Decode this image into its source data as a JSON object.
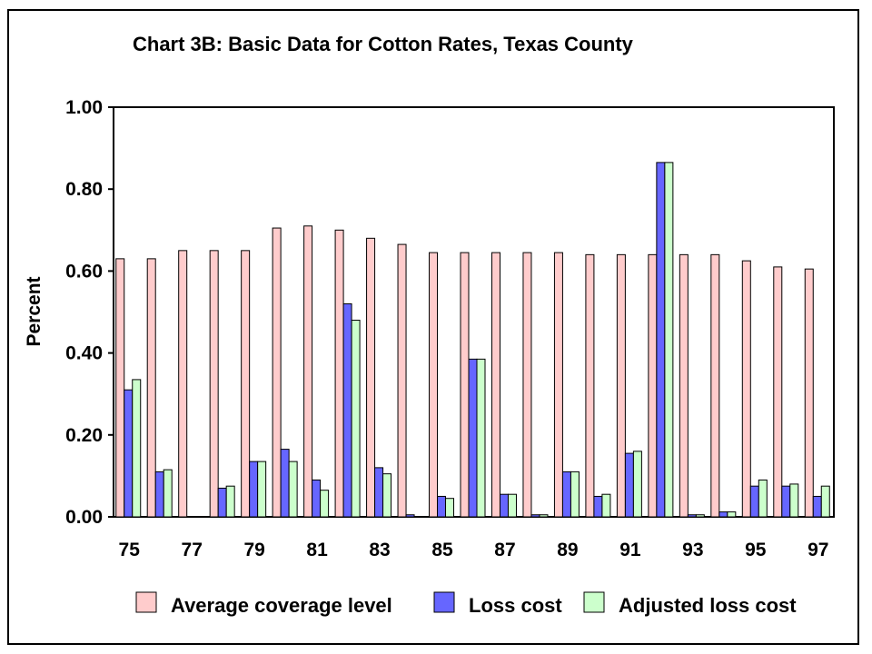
{
  "chart_data": {
    "type": "bar",
    "title": "Chart 3B: Basic Data for Cotton Rates, Texas County",
    "xlabel": "",
    "ylabel": "Percent",
    "ylim": [
      0,
      1.0
    ],
    "yticks": [
      "0.00",
      "0.20",
      "0.40",
      "0.60",
      "0.80",
      "1.00"
    ],
    "ytick_values": [
      0,
      0.2,
      0.4,
      0.6,
      0.8,
      1.0
    ],
    "categories": [
      "75",
      "76",
      "77",
      "78",
      "79",
      "80",
      "81",
      "82",
      "83",
      "84",
      "85",
      "86",
      "87",
      "88",
      "89",
      "90",
      "91",
      "92",
      "93",
      "94",
      "95",
      "96",
      "97"
    ],
    "xtick_labels": [
      "75",
      "",
      "77",
      "",
      "79",
      "",
      "81",
      "",
      "83",
      "",
      "85",
      "",
      "87",
      "",
      "89",
      "",
      "91",
      "",
      "93",
      "",
      "95",
      "",
      "97"
    ],
    "grid": false,
    "legend_position": "bottom",
    "series": [
      {
        "name": "Average coverage level",
        "color": "#ffcccc",
        "values": [
          0.63,
          0.63,
          0.65,
          0.65,
          0.65,
          0.705,
          0.71,
          0.7,
          0.68,
          0.665,
          0.645,
          0.645,
          0.645,
          0.645,
          0.645,
          0.64,
          0.64,
          0.64,
          0.64,
          0.64,
          0.625,
          0.61,
          0.605
        ]
      },
      {
        "name": "Loss cost",
        "color": "#6666ff",
        "values": [
          0.31,
          0.11,
          0.0,
          0.07,
          0.135,
          0.165,
          0.09,
          0.52,
          0.12,
          0.005,
          0.05,
          0.385,
          0.055,
          0.005,
          0.11,
          0.05,
          0.155,
          0.865,
          0.005,
          0.012,
          0.075,
          0.075,
          0.05
        ]
      },
      {
        "name": "Adjusted loss cost",
        "color": "#ccffcc",
        "values": [
          0.335,
          0.115,
          0.0,
          0.075,
          0.135,
          0.135,
          0.065,
          0.48,
          0.105,
          0.0,
          0.045,
          0.385,
          0.055,
          0.005,
          0.11,
          0.055,
          0.16,
          0.865,
          0.005,
          0.012,
          0.09,
          0.08,
          0.075
        ]
      }
    ]
  }
}
